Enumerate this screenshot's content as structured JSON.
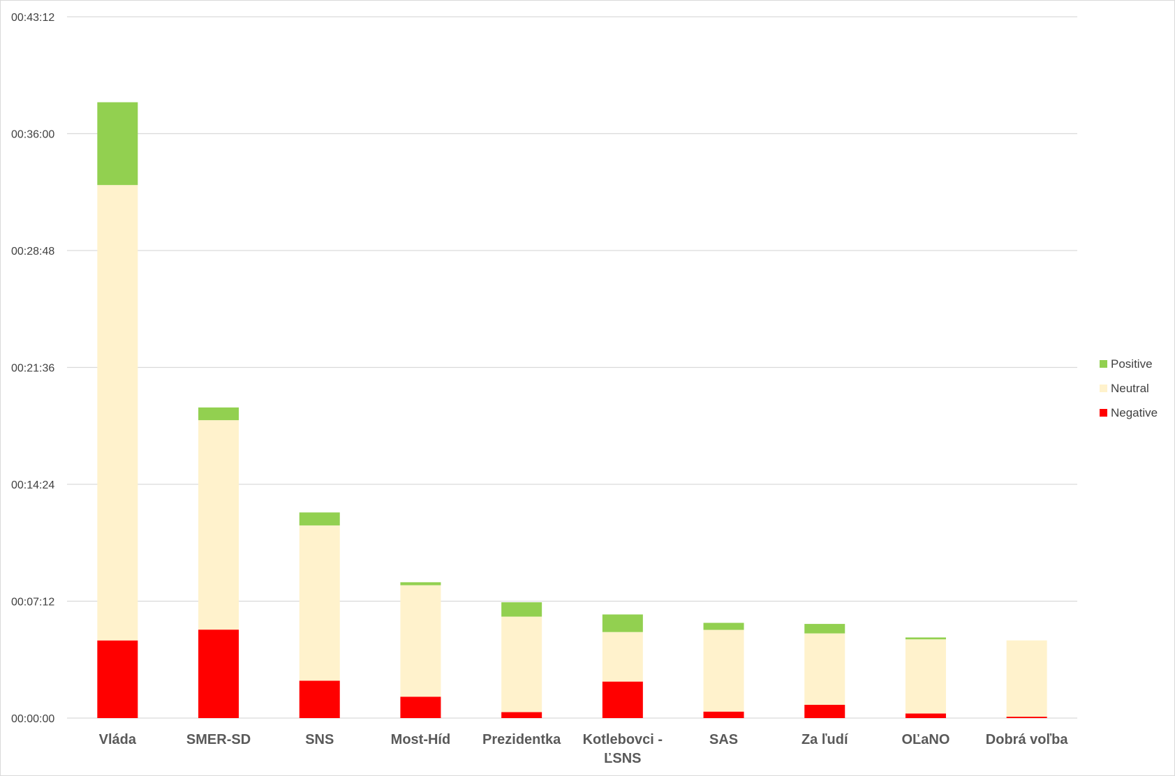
{
  "chart_data": {
    "type": "bar",
    "stacked": true,
    "categories": [
      [
        "Vláda"
      ],
      [
        "SMER-SD"
      ],
      [
        "SNS"
      ],
      [
        "Most-Híd"
      ],
      [
        "Prezidentka"
      ],
      [
        "Kotlebovci -",
        "ĽSNS"
      ],
      [
        "SAS"
      ],
      [
        "Za ľudí"
      ],
      [
        "OĽaNO"
      ],
      [
        "Dobrá voľba"
      ]
    ],
    "y_unit": "seconds",
    "ylim": [
      0,
      2592
    ],
    "yticks": [
      0,
      432,
      864,
      1296,
      1728,
      2160,
      2592
    ],
    "ytick_labels": [
      "00:00:00",
      "00:07:12",
      "00:14:24",
      "00:21:36",
      "00:28:48",
      "00:36:00",
      "00:43:12"
    ],
    "series": [
      {
        "name": "Negative",
        "color": "#ff0000",
        "values": [
          287,
          327,
          138,
          79,
          22,
          135,
          24,
          49,
          17,
          5
        ]
      },
      {
        "name": "Neutral",
        "color": "#fff2cc",
        "values": [
          1683,
          774,
          574,
          412,
          353,
          183,
          302,
          264,
          274,
          282
        ]
      },
      {
        "name": "Positive",
        "color": "#92d050",
        "values": [
          306,
          47,
          48,
          11,
          53,
          65,
          26,
          35,
          7,
          0
        ]
      }
    ],
    "legend_order": [
      "Positive",
      "Neutral",
      "Negative"
    ],
    "legend_position": "right",
    "grid": true,
    "gridline_color": "#d9d9d9"
  }
}
